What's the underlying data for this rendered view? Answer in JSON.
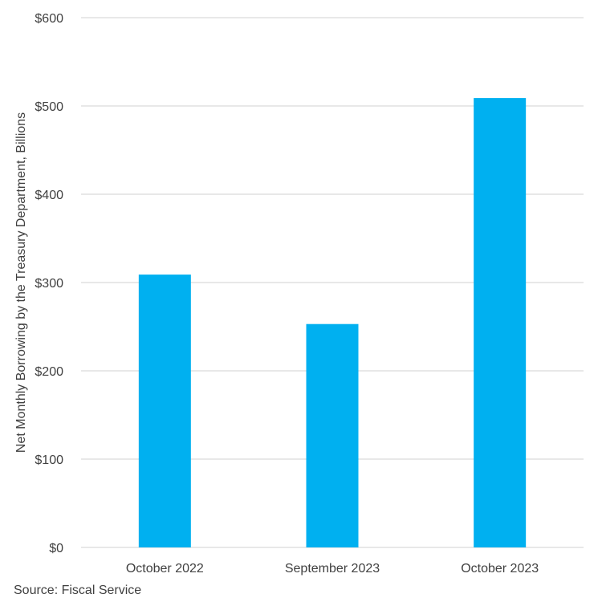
{
  "chart_data": {
    "type": "bar",
    "title": "",
    "xlabel": "",
    "ylabel": "Net Monthly Borrowing by the Treasury Department, Billions",
    "categories": [
      "October 2022",
      "September 2023",
      "October 2023"
    ],
    "values": [
      309,
      253,
      509
    ],
    "ylim": [
      0,
      600
    ],
    "yticks": [
      0,
      100,
      200,
      300,
      400,
      500,
      600
    ],
    "ytick_labels": [
      "$0",
      "$100",
      "$200",
      "$300",
      "$400",
      "$500",
      "$600"
    ],
    "grid": true,
    "legend": "none",
    "bar_color": "#00B0F0",
    "grid_color": "#D9D9D9"
  },
  "source": "Source: Fiscal Service"
}
